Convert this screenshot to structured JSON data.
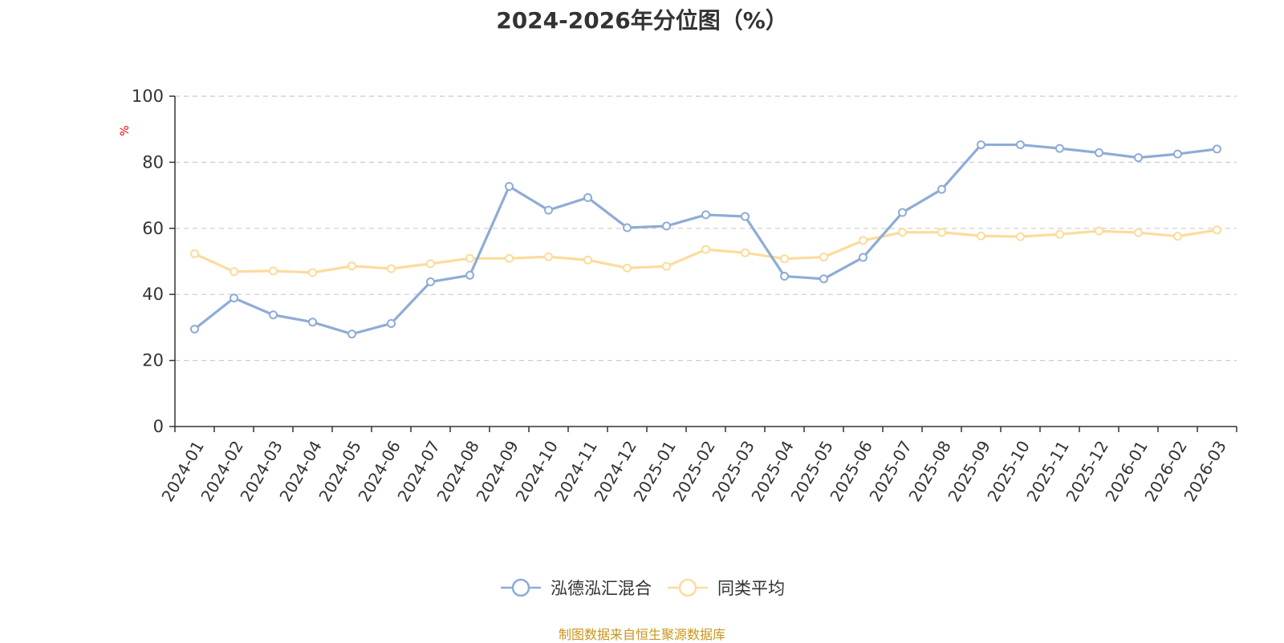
{
  "chart_data": {
    "type": "line",
    "title": "2024-2026年分位图（%）",
    "ylabel": "%",
    "ylim": [
      0,
      100
    ],
    "yticks": [
      "0",
      "20",
      "40",
      "60",
      "80",
      "100"
    ],
    "grid": true,
    "legend_position": "bottom",
    "categories": [
      "2024-01",
      "2024-02",
      "2024-03",
      "2024-04",
      "2024-05",
      "2024-06",
      "2024-07",
      "2024-08",
      "2024-09",
      "2024-10",
      "2024-11",
      "2024-12",
      "2025-01",
      "2025-02",
      "2025-03",
      "2025-04",
      "2025-05",
      "2025-06",
      "2025-07",
      "2025-08",
      "2025-09",
      "2025-10",
      "2025-11",
      "2025-12",
      "2026-01",
      "2026-02",
      "2026-03"
    ],
    "series": [
      {
        "name": "泓德泓汇混合",
        "color": "#8eacd6",
        "values": [
          29.5,
          38.9,
          33.8,
          31.6,
          28.0,
          31.2,
          43.8,
          45.8,
          72.7,
          65.5,
          69.3,
          60.2,
          60.7,
          64.1,
          63.6,
          45.5,
          44.7,
          51.2,
          64.8,
          71.8,
          85.3,
          85.3,
          84.2,
          82.9,
          81.4,
          82.5,
          84.0
        ]
      },
      {
        "name": "同类平均",
        "color": "#fddb9c",
        "values": [
          52.3,
          46.9,
          47.1,
          46.6,
          48.6,
          47.8,
          49.3,
          50.9,
          50.9,
          51.4,
          50.4,
          48.0,
          48.5,
          53.6,
          52.6,
          50.8,
          51.3,
          56.3,
          58.8,
          58.8,
          57.7,
          57.5,
          58.2,
          59.2,
          58.7,
          57.6,
          59.5
        ]
      }
    ]
  },
  "credit": "制图数据来自恒生聚源数据库",
  "credit_color": "#c8961e"
}
